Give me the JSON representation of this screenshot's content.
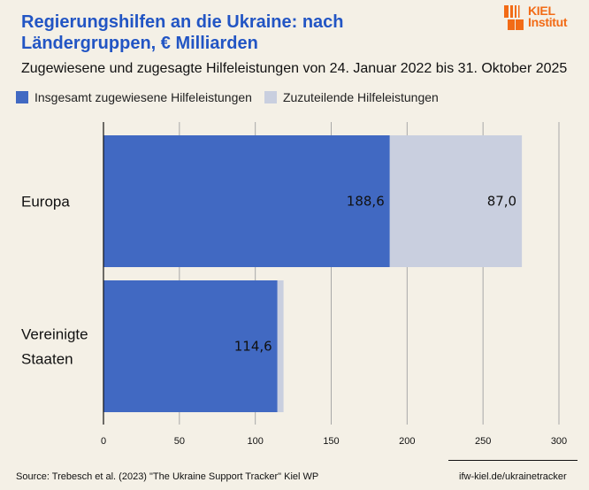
{
  "header": {
    "title": "Regierungshilfen an die Ukraine: nach Ländergruppen, € Milliarden",
    "subtitle": "Zugewiesene und zugesagte Hilfeleistungen von 24. Januar 2022 bis 31. Oktober 2025",
    "logo_line1": "KIEL",
    "logo_line2": "Institut"
  },
  "colors": {
    "title": "#2255c4",
    "allocated": "#4169c2",
    "remaining": "#c9cfdf",
    "background": "#f4f0e6",
    "logo": "#f26b16",
    "grid": "#a8a8a8"
  },
  "chart_data": {
    "type": "bar",
    "orientation": "horizontal",
    "stacked": true,
    "title": "Regierungshilfen an die Ukraine: nach Ländergruppen, € Milliarden",
    "subtitle": "Zugewiesene und zugesagte Hilfeleistungen von 24. Januar 2022 bis 31. Oktober 2025",
    "categories": [
      "Europa",
      "Vereinigte Staaten"
    ],
    "category_label_lines": [
      [
        "Europa"
      ],
      [
        "Vereinigte",
        "Staaten"
      ]
    ],
    "series": [
      {
        "name": "Insgesamt zugewiesene Hilfeleistungen",
        "values": [
          188.6,
          114.6
        ],
        "labels": [
          "188,6",
          "114,6"
        ]
      },
      {
        "name": "Zuzuteilende Hilfeleistungen",
        "values": [
          87.0,
          4.0
        ],
        "labels": [
          "87,0",
          ""
        ]
      }
    ],
    "xlabel": "",
    "ylabel": "",
    "xlim": [
      0,
      300
    ],
    "xticks": [
      0,
      50,
      100,
      150,
      200,
      250,
      300
    ],
    "xtick_labels": [
      "0",
      "50",
      "100",
      "150",
      "200",
      "250",
      "300"
    ],
    "grid": true,
    "legend_position": "top-left"
  },
  "footer": {
    "source": "Source: Trebesch et al. (2023) \"The Ukraine Support Tracker\" Kiel WP",
    "url": "ifw-kiel.de/ukrainetracker"
  }
}
